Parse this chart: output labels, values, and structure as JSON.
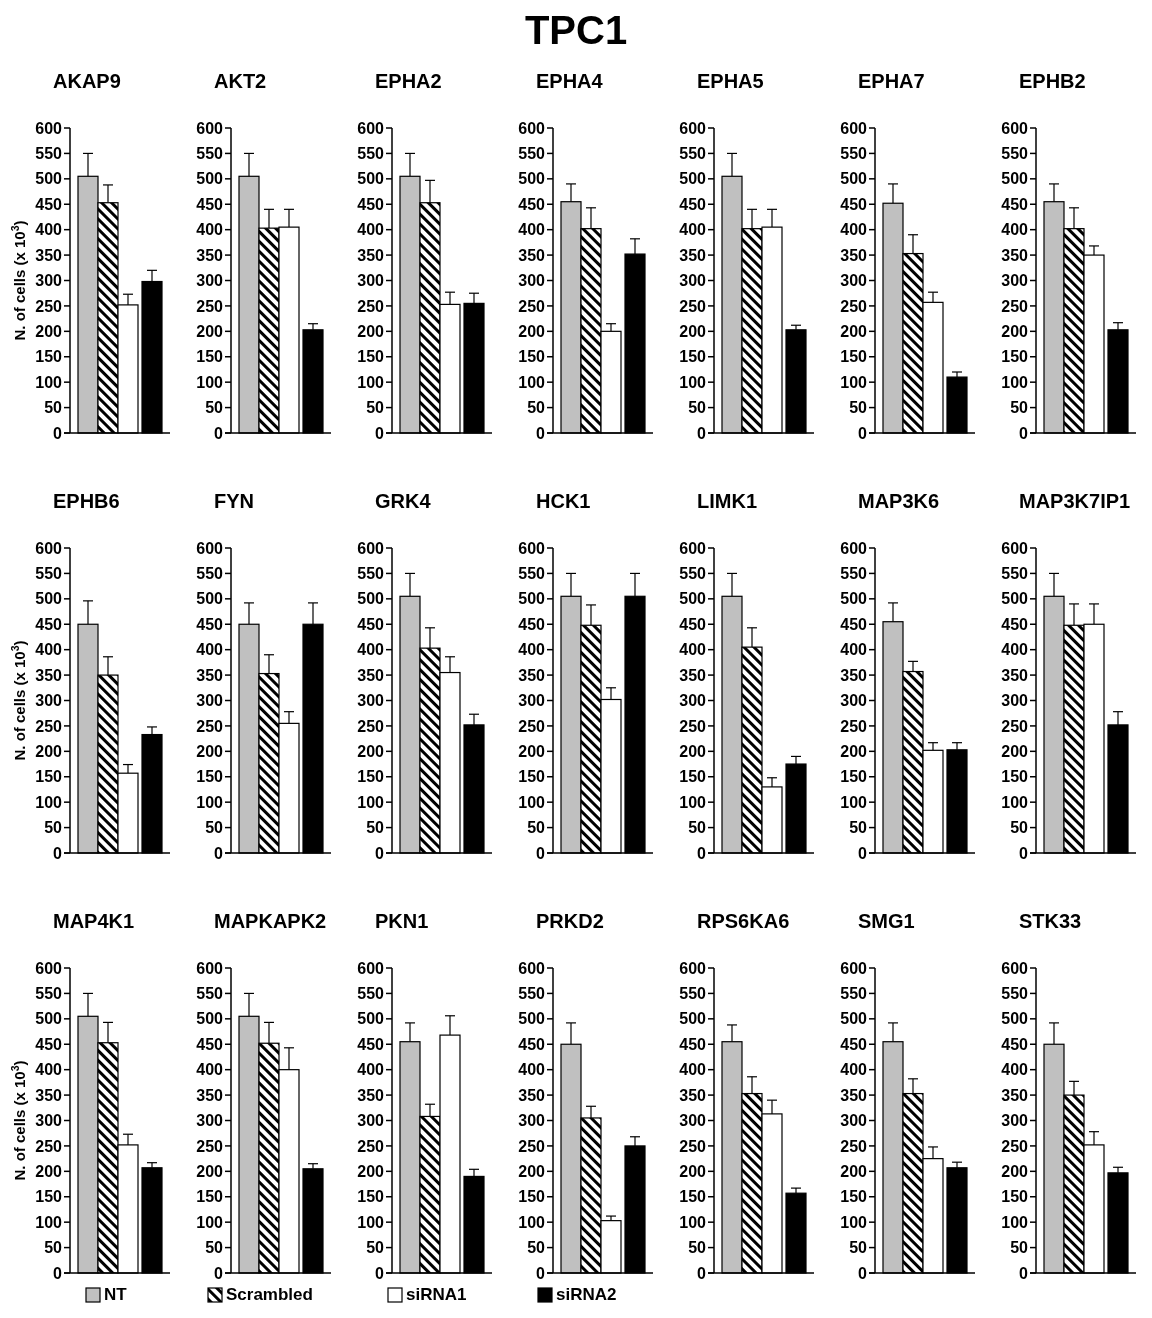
{
  "chart_data": [
    {
      "type": "bar",
      "title": "AKAP9",
      "ylabel": "N. of cells (x 10$^{3}$)",
      "annotations": [
        "TPC1"
      ],
      "legend": "bottom",
      "categories": [
        null
      ],
      "ylim": [
        0,
        600
      ],
      "yticks": [
        0,
        50,
        100,
        150,
        200,
        250,
        300,
        350,
        400,
        450,
        500,
        550,
        600
      ],
      "series": [
        {
          "name": "NT",
          "color": "#c0c0c0",
          "values": [
            505
          ],
          "errors": [
            [
              505,
              550
            ]
          ]
        },
        {
          "name": "Scrambled",
          "color": "#000000",
          "values": [
            453
          ],
          "errors": [
            [
              453,
              488
            ]
          ]
        },
        {
          "name": "siRNA1",
          "color": "#ffffff",
          "values": [
            252
          ],
          "errors": [
            [
              252,
              273
            ]
          ]
        },
        {
          "name": "siRNA2",
          "color": "#000000",
          "values": [
            298
          ],
          "errors": [
            [
              298,
              320
            ]
          ]
        }
      ]
    },
    {
      "type": "bar",
      "title": "AKT2",
      "categories": [
        null
      ],
      "ylim": [
        0,
        600
      ],
      "yticks": [
        0,
        50,
        100,
        150,
        200,
        250,
        300,
        350,
        400,
        450,
        500,
        550,
        600
      ],
      "series": [
        {
          "color": "#c0c0c0",
          "values": [
            505
          ],
          "errors": [
            [
              505,
              550
            ]
          ]
        },
        {
          "color": "#000000",
          "values": [
            403
          ],
          "errors": [
            [
              403,
              440
            ]
          ]
        },
        {
          "color": "#ffffff",
          "values": [
            405
          ],
          "errors": [
            [
              405,
              440
            ]
          ]
        },
        {
          "color": "#000000",
          "values": [
            203
          ],
          "errors": [
            [
              203,
              215
            ]
          ]
        }
      ]
    },
    {
      "type": "bar",
      "title": "EPHA2",
      "categories": [
        null
      ],
      "ylim": [
        0,
        600
      ],
      "yticks": [
        0,
        50,
        100,
        150,
        200,
        250,
        300,
        350,
        400,
        450,
        500,
        550,
        600
      ],
      "series": [
        {
          "color": "#c0c0c0",
          "values": [
            505
          ],
          "errors": [
            [
              505,
              550
            ]
          ]
        },
        {
          "color": "#000000",
          "values": [
            453
          ],
          "errors": [
            [
              453,
              497
            ]
          ]
        },
        {
          "color": "#ffffff",
          "values": [
            253
          ],
          "errors": [
            [
              253,
              277
            ]
          ]
        },
        {
          "color": "#000000",
          "values": [
            255
          ],
          "errors": [
            [
              255,
              275
            ]
          ]
        }
      ]
    },
    {
      "type": "bar",
      "title": "EPHA4",
      "categories": [
        null
      ],
      "ylim": [
        0,
        600
      ],
      "yticks": [
        0,
        50,
        100,
        150,
        200,
        250,
        300,
        350,
        400,
        450,
        500,
        550,
        600
      ],
      "series": [
        {
          "color": "#c0c0c0",
          "values": [
            455
          ],
          "errors": [
            [
              455,
              490
            ]
          ]
        },
        {
          "color": "#000000",
          "values": [
            402
          ],
          "errors": [
            [
              402,
              443
            ]
          ]
        },
        {
          "color": "#ffffff",
          "values": [
            200
          ],
          "errors": [
            [
              200,
              215
            ]
          ]
        },
        {
          "color": "#000000",
          "values": [
            352
          ],
          "errors": [
            [
              352,
              382
            ]
          ]
        }
      ]
    },
    {
      "type": "bar",
      "title": "EPHA5",
      "categories": [
        null
      ],
      "ylim": [
        0,
        600
      ],
      "yticks": [
        0,
        50,
        100,
        150,
        200,
        250,
        300,
        350,
        400,
        450,
        500,
        550,
        600
      ],
      "series": [
        {
          "color": "#c0c0c0",
          "values": [
            505
          ],
          "errors": [
            [
              505,
              550
            ]
          ]
        },
        {
          "color": "#000000",
          "values": [
            402
          ],
          "errors": [
            [
              402,
              440
            ]
          ]
        },
        {
          "color": "#ffffff",
          "values": [
            405
          ],
          "errors": [
            [
              405,
              440
            ]
          ]
        },
        {
          "color": "#000000",
          "values": [
            203
          ],
          "errors": [
            [
              203,
              212
            ]
          ]
        }
      ]
    },
    {
      "type": "bar",
      "title": "EPHA7",
      "categories": [
        null
      ],
      "ylim": [
        0,
        600
      ],
      "yticks": [
        0,
        50,
        100,
        150,
        200,
        250,
        300,
        350,
        400,
        450,
        500,
        550,
        600
      ],
      "series": [
        {
          "color": "#c0c0c0",
          "values": [
            452
          ],
          "errors": [
            [
              452,
              490
            ]
          ]
        },
        {
          "color": "#000000",
          "values": [
            353
          ],
          "errors": [
            [
              353,
              390
            ]
          ]
        },
        {
          "color": "#ffffff",
          "values": [
            257
          ],
          "errors": [
            [
              257,
              277
            ]
          ]
        },
        {
          "color": "#000000",
          "values": [
            110
          ],
          "errors": [
            [
              110,
              120
            ]
          ]
        }
      ]
    },
    {
      "type": "bar",
      "title": "EPHB2",
      "categories": [
        null
      ],
      "ylim": [
        0,
        600
      ],
      "yticks": [
        0,
        50,
        100,
        150,
        200,
        250,
        300,
        350,
        400,
        450,
        500,
        550,
        600
      ],
      "series": [
        {
          "color": "#c0c0c0",
          "values": [
            455
          ],
          "errors": [
            [
              455,
              490
            ]
          ]
        },
        {
          "color": "#000000",
          "values": [
            402
          ],
          "errors": [
            [
              402,
              443
            ]
          ]
        },
        {
          "color": "#ffffff",
          "values": [
            350
          ],
          "errors": [
            [
              350,
              368
            ]
          ]
        },
        {
          "color": "#000000",
          "values": [
            203
          ],
          "errors": [
            [
              203,
              217
            ]
          ]
        }
      ]
    },
    {
      "type": "bar",
      "title": "EPHB6",
      "ylabel": "N. of cells (x 10$^{3}$)",
      "categories": [
        null
      ],
      "ylim": [
        0,
        600
      ],
      "yticks": [
        0,
        50,
        100,
        150,
        200,
        250,
        300,
        350,
        400,
        450,
        500,
        550,
        600
      ],
      "series": [
        {
          "color": "#c0c0c0",
          "values": [
            450
          ],
          "errors": [
            [
              450,
              496
            ]
          ]
        },
        {
          "color": "#000000",
          "values": [
            350
          ],
          "errors": [
            [
              350,
              386
            ]
          ]
        },
        {
          "color": "#ffffff",
          "values": [
            157
          ],
          "errors": [
            [
              157,
              174
            ]
          ]
        },
        {
          "color": "#000000",
          "values": [
            233
          ],
          "errors": [
            [
              233,
              248
            ]
          ]
        }
      ]
    },
    {
      "type": "bar",
      "title": "FYN",
      "categories": [
        null
      ],
      "ylim": [
        0,
        600
      ],
      "yticks": [
        0,
        50,
        100,
        150,
        200,
        250,
        300,
        350,
        400,
        450,
        500,
        550,
        600
      ],
      "series": [
        {
          "color": "#c0c0c0",
          "values": [
            450
          ],
          "errors": [
            [
              450,
              492
            ]
          ]
        },
        {
          "color": "#000000",
          "values": [
            353
          ],
          "errors": [
            [
              353,
              390
            ]
          ]
        },
        {
          "color": "#ffffff",
          "values": [
            255
          ],
          "errors": [
            [
              255,
              278
            ]
          ]
        },
        {
          "color": "#000000",
          "values": [
            450
          ],
          "errors": [
            [
              450,
              492
            ]
          ]
        }
      ]
    },
    {
      "type": "bar",
      "title": "GRK4",
      "categories": [
        null
      ],
      "ylim": [
        0,
        600
      ],
      "yticks": [
        0,
        50,
        100,
        150,
        200,
        250,
        300,
        350,
        400,
        450,
        500,
        550,
        600
      ],
      "series": [
        {
          "color": "#c0c0c0",
          "values": [
            505
          ],
          "errors": [
            [
              505,
              550
            ]
          ]
        },
        {
          "color": "#000000",
          "values": [
            403
          ],
          "errors": [
            [
              403,
              443
            ]
          ]
        },
        {
          "color": "#ffffff",
          "values": [
            355
          ],
          "errors": [
            [
              355,
              386
            ]
          ]
        },
        {
          "color": "#000000",
          "values": [
            252
          ],
          "errors": [
            [
              252,
              273
            ]
          ]
        }
      ]
    },
    {
      "type": "bar",
      "title": "HCK1",
      "categories": [
        null
      ],
      "ylim": [
        0,
        600
      ],
      "yticks": [
        0,
        50,
        100,
        150,
        200,
        250,
        300,
        350,
        400,
        450,
        500,
        550,
        600
      ],
      "series": [
        {
          "color": "#c0c0c0",
          "values": [
            505
          ],
          "errors": [
            [
              505,
              550
            ]
          ]
        },
        {
          "color": "#000000",
          "values": [
            448
          ],
          "errors": [
            [
              448,
              488
            ]
          ]
        },
        {
          "color": "#ffffff",
          "values": [
            302
          ],
          "errors": [
            [
              302,
              325
            ]
          ]
        },
        {
          "color": "#000000",
          "values": [
            505
          ],
          "errors": [
            [
              505,
              550
            ]
          ]
        }
      ]
    },
    {
      "type": "bar",
      "title": "LIMK1",
      "categories": [
        null
      ],
      "ylim": [
        0,
        600
      ],
      "yticks": [
        0,
        50,
        100,
        150,
        200,
        250,
        300,
        350,
        400,
        450,
        500,
        550,
        600
      ],
      "series": [
        {
          "color": "#c0c0c0",
          "values": [
            505
          ],
          "errors": [
            [
              505,
              550
            ]
          ]
        },
        {
          "color": "#000000",
          "values": [
            405
          ],
          "errors": [
            [
              405,
              443
            ]
          ]
        },
        {
          "color": "#ffffff",
          "values": [
            130
          ],
          "errors": [
            [
              130,
              148
            ]
          ]
        },
        {
          "color": "#000000",
          "values": [
            175
          ],
          "errors": [
            [
              175,
              190
            ]
          ]
        }
      ]
    },
    {
      "type": "bar",
      "title": "MAP3K6",
      "categories": [
        null
      ],
      "ylim": [
        0,
        600
      ],
      "yticks": [
        0,
        50,
        100,
        150,
        200,
        250,
        300,
        350,
        400,
        450,
        500,
        550,
        600
      ],
      "series": [
        {
          "color": "#c0c0c0",
          "values": [
            455
          ],
          "errors": [
            [
              455,
              492
            ]
          ]
        },
        {
          "color": "#000000",
          "values": [
            357
          ],
          "errors": [
            [
              357,
              377
            ]
          ]
        },
        {
          "color": "#ffffff",
          "values": [
            202
          ],
          "errors": [
            [
              202,
              217
            ]
          ]
        },
        {
          "color": "#000000",
          "values": [
            203
          ],
          "errors": [
            [
              203,
              217
            ]
          ]
        }
      ]
    },
    {
      "type": "bar",
      "title": "MAP3K7IP1",
      "categories": [
        null
      ],
      "ylim": [
        0,
        600
      ],
      "yticks": [
        0,
        50,
        100,
        150,
        200,
        250,
        300,
        350,
        400,
        450,
        500,
        550,
        600
      ],
      "series": [
        {
          "color": "#c0c0c0",
          "values": [
            505
          ],
          "errors": [
            [
              505,
              550
            ]
          ]
        },
        {
          "color": "#000000",
          "values": [
            448
          ],
          "errors": [
            [
              448,
              490
            ]
          ]
        },
        {
          "color": "#ffffff",
          "values": [
            450
          ],
          "errors": [
            [
              450,
              490
            ]
          ]
        },
        {
          "color": "#000000",
          "values": [
            252
          ],
          "errors": [
            [
              252,
              278
            ]
          ]
        }
      ]
    },
    {
      "type": "bar",
      "title": "MAP4K1",
      "ylabel": "N. of cells (x 10$^{3}$)",
      "categories": [
        null
      ],
      "ylim": [
        0,
        600
      ],
      "yticks": [
        0,
        50,
        100,
        150,
        200,
        250,
        300,
        350,
        400,
        450,
        500,
        550,
        600
      ],
      "series": [
        {
          "color": "#c0c0c0",
          "values": [
            505
          ],
          "errors": [
            [
              505,
              550
            ]
          ]
        },
        {
          "color": "#000000",
          "values": [
            453
          ],
          "errors": [
            [
              453,
              493
            ]
          ]
        },
        {
          "color": "#ffffff",
          "values": [
            252
          ],
          "errors": [
            [
              252,
              273
            ]
          ]
        },
        {
          "color": "#000000",
          "values": [
            207
          ],
          "errors": [
            [
              207,
              217
            ]
          ]
        }
      ]
    },
    {
      "type": "bar",
      "title": "MAPKAPK2",
      "categories": [
        null
      ],
      "ylim": [
        0,
        600
      ],
      "yticks": [
        0,
        50,
        100,
        150,
        200,
        250,
        300,
        350,
        400,
        450,
        500,
        550,
        600
      ],
      "series": [
        {
          "color": "#c0c0c0",
          "values": [
            505
          ],
          "errors": [
            [
              505,
              550
            ]
          ]
        },
        {
          "color": "#000000",
          "values": [
            452
          ],
          "errors": [
            [
              452,
              493
            ]
          ]
        },
        {
          "color": "#ffffff",
          "values": [
            400
          ],
          "errors": [
            [
              400,
              443
            ]
          ]
        },
        {
          "color": "#000000",
          "values": [
            205
          ],
          "errors": [
            [
              205,
              215
            ]
          ]
        }
      ]
    },
    {
      "type": "bar",
      "title": "PKN1",
      "categories": [
        null
      ],
      "ylim": [
        0,
        600
      ],
      "yticks": [
        0,
        50,
        100,
        150,
        200,
        250,
        300,
        350,
        400,
        450,
        500,
        550,
        600
      ],
      "series": [
        {
          "color": "#c0c0c0",
          "values": [
            455
          ],
          "errors": [
            [
              455,
              492
            ]
          ]
        },
        {
          "color": "#000000",
          "values": [
            308
          ],
          "errors": [
            [
              308,
              332
            ]
          ]
        },
        {
          "color": "#ffffff",
          "values": [
            468
          ],
          "errors": [
            [
              468,
              506
            ]
          ]
        },
        {
          "color": "#000000",
          "values": [
            190
          ],
          "errors": [
            [
              190,
              204
            ]
          ]
        }
      ]
    },
    {
      "type": "bar",
      "title": "PRKD2",
      "categories": [
        null
      ],
      "ylim": [
        0,
        600
      ],
      "yticks": [
        0,
        50,
        100,
        150,
        200,
        250,
        300,
        350,
        400,
        450,
        500,
        550,
        600
      ],
      "series": [
        {
          "color": "#c0c0c0",
          "values": [
            450
          ],
          "errors": [
            [
              450,
              492
            ]
          ]
        },
        {
          "color": "#000000",
          "values": [
            305
          ],
          "errors": [
            [
              305,
              328
            ]
          ]
        },
        {
          "color": "#ffffff",
          "values": [
            103
          ],
          "errors": [
            [
              103,
              112
            ]
          ]
        },
        {
          "color": "#000000",
          "values": [
            250
          ],
          "errors": [
            [
              250,
              268
            ]
          ]
        }
      ]
    },
    {
      "type": "bar",
      "title": "RPS6KA6",
      "categories": [
        null
      ],
      "ylim": [
        0,
        600
      ],
      "yticks": [
        0,
        50,
        100,
        150,
        200,
        250,
        300,
        350,
        400,
        450,
        500,
        550,
        600
      ],
      "series": [
        {
          "color": "#c0c0c0",
          "values": [
            455
          ],
          "errors": [
            [
              455,
              488
            ]
          ]
        },
        {
          "color": "#000000",
          "values": [
            353
          ],
          "errors": [
            [
              353,
              386
            ]
          ]
        },
        {
          "color": "#ffffff",
          "values": [
            313
          ],
          "errors": [
            [
              313,
              340
            ]
          ]
        },
        {
          "color": "#000000",
          "values": [
            157
          ],
          "errors": [
            [
              157,
              167
            ]
          ]
        }
      ]
    },
    {
      "type": "bar",
      "title": "SMG1",
      "categories": [
        null
      ],
      "ylim": [
        0,
        600
      ],
      "yticks": [
        0,
        50,
        100,
        150,
        200,
        250,
        300,
        350,
        400,
        450,
        500,
        550,
        600
      ],
      "series": [
        {
          "color": "#c0c0c0",
          "values": [
            455
          ],
          "errors": [
            [
              455,
              492
            ]
          ]
        },
        {
          "color": "#000000",
          "values": [
            353
          ],
          "errors": [
            [
              353,
              382
            ]
          ]
        },
        {
          "color": "#ffffff",
          "values": [
            225
          ],
          "errors": [
            [
              225,
              248
            ]
          ]
        },
        {
          "color": "#000000",
          "values": [
            207
          ],
          "errors": [
            [
              207,
              218
            ]
          ]
        }
      ]
    },
    {
      "type": "bar",
      "title": "STK33",
      "categories": [
        null
      ],
      "ylim": [
        0,
        600
      ],
      "yticks": [
        0,
        50,
        100,
        150,
        200,
        250,
        300,
        350,
        400,
        450,
        500,
        550,
        600
      ],
      "series": [
        {
          "color": "#c0c0c0",
          "values": [
            450
          ],
          "errors": [
            [
              450,
              492
            ]
          ]
        },
        {
          "color": "#000000",
          "values": [
            350
          ],
          "errors": [
            [
              350,
              377
            ]
          ]
        },
        {
          "color": "#ffffff",
          "values": [
            252
          ],
          "errors": [
            [
              252,
              278
            ]
          ]
        },
        {
          "color": "#000000",
          "values": [
            197
          ],
          "errors": [
            [
              197,
              208
            ]
          ]
        }
      ]
    }
  ]
}
